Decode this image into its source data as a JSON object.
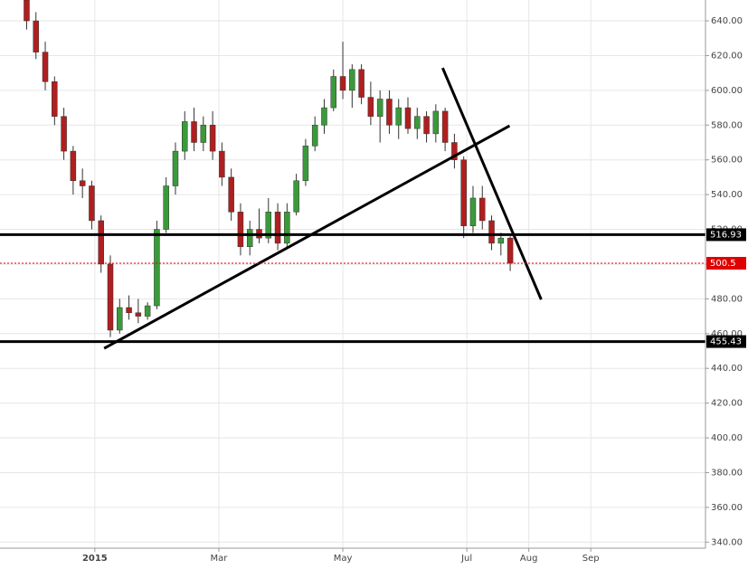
{
  "chart_data": {
    "type": "candlestick",
    "x": [
      -1.1,
      -0.95,
      -0.8,
      -0.65,
      -0.5,
      -0.35,
      -0.2,
      -0.05,
      0.1,
      0.25,
      0.4,
      0.55,
      0.7,
      0.85,
      1.0,
      1.15,
      1.3,
      1.45,
      1.6,
      1.75,
      1.9,
      2.05,
      2.2,
      2.35,
      2.5,
      2.65,
      2.8,
      2.95,
      3.1,
      3.25,
      3.4,
      3.55,
      3.7,
      3.85,
      4.0,
      4.15,
      4.3,
      4.45,
      4.6,
      4.75,
      4.9,
      5.05,
      5.2,
      5.35,
      5.5,
      5.65,
      5.8,
      5.95,
      6.1,
      6.25,
      6.4,
      6.55,
      6.7
    ],
    "open": [
      652,
      640,
      622,
      605,
      585,
      565,
      548,
      545,
      525,
      500,
      462,
      475,
      472,
      470,
      476,
      520,
      545,
      565,
      582,
      570,
      580,
      565,
      550,
      530,
      510,
      520,
      515,
      530,
      512,
      530,
      548,
      568,
      580,
      590,
      608,
      600,
      612,
      596,
      585,
      595,
      580,
      590,
      578,
      585,
      575,
      588,
      570,
      560,
      522,
      538,
      525,
      512,
      515
    ],
    "high": [
      656,
      645,
      628,
      608,
      590,
      568,
      555,
      548,
      528,
      505,
      480,
      482,
      480,
      478,
      525,
      550,
      570,
      588,
      590,
      585,
      588,
      570,
      555,
      535,
      525,
      532,
      538,
      535,
      535,
      552,
      572,
      585,
      595,
      612,
      628,
      615,
      615,
      605,
      600,
      600,
      595,
      596,
      590,
      588,
      592,
      590,
      575,
      562,
      545,
      545,
      528,
      518,
      516
    ],
    "low": [
      635,
      618,
      600,
      580,
      560,
      540,
      538,
      520,
      495,
      458,
      460,
      468,
      466,
      468,
      474,
      518,
      540,
      560,
      565,
      565,
      560,
      545,
      525,
      505,
      505,
      512,
      512,
      508,
      510,
      528,
      545,
      565,
      575,
      588,
      595,
      590,
      592,
      580,
      570,
      575,
      572,
      575,
      572,
      570,
      570,
      565,
      555,
      515,
      518,
      520,
      508,
      505,
      496
    ],
    "close": [
      640,
      622,
      605,
      585,
      565,
      548,
      545,
      525,
      500,
      462,
      475,
      472,
      470,
      476,
      520,
      545,
      565,
      582,
      570,
      580,
      565,
      550,
      530,
      510,
      520,
      515,
      530,
      512,
      530,
      548,
      568,
      580,
      590,
      608,
      600,
      612,
      596,
      585,
      595,
      580,
      590,
      578,
      585,
      575,
      588,
      570,
      560,
      522,
      538,
      525,
      512,
      515,
      500.5
    ],
    "up_color": "#3a9a3a",
    "down_color": "#b01f1f",
    "xlim": [
      -1.53,
      9.85
    ],
    "xticks": [
      {
        "value": 0,
        "label": "2015"
      },
      {
        "value": 2,
        "label": "Mar"
      },
      {
        "value": 4,
        "label": "May"
      },
      {
        "value": 6,
        "label": "Jul"
      },
      {
        "value": 7,
        "label": "Aug"
      },
      {
        "value": 8,
        "label": "Sep"
      }
    ],
    "ylim": [
      336.5,
      652
    ],
    "yticks": [
      {
        "value": 340,
        "label": "340.00"
      },
      {
        "value": 360,
        "label": "360.00"
      },
      {
        "value": 380,
        "label": "380.00"
      },
      {
        "value": 400,
        "label": "400.00"
      },
      {
        "value": 420,
        "label": "420.00"
      },
      {
        "value": 440,
        "label": "440.00"
      },
      {
        "value": 460,
        "label": "460.00"
      },
      {
        "value": 480,
        "label": "480.00"
      },
      {
        "value": 500,
        "label": "500.00"
      },
      {
        "value": 520,
        "label": "520.00"
      },
      {
        "value": 540,
        "label": "540.00"
      },
      {
        "value": 560,
        "label": "560.00"
      },
      {
        "value": 580,
        "label": "580.00"
      },
      {
        "value": 600,
        "label": "600.00"
      },
      {
        "value": 620,
        "label": "620.00"
      },
      {
        "value": 640,
        "label": "640.00"
      }
    ],
    "grid": true,
    "levels": [
      {
        "value": 516.93,
        "color": "#000000",
        "style": "solid"
      },
      {
        "value": 455.43,
        "color": "#000000",
        "style": "solid"
      },
      {
        "value": 500.5,
        "color": "#e00000",
        "style": "dotted"
      }
    ],
    "trendlines": [
      {
        "x": [
          0.15,
          6.69
        ],
        "y": [
          451.5,
          579.6
        ]
      },
      {
        "x": [
          5.61,
          7.2
        ],
        "y": [
          612.9,
          479.6
        ]
      }
    ]
  }
}
